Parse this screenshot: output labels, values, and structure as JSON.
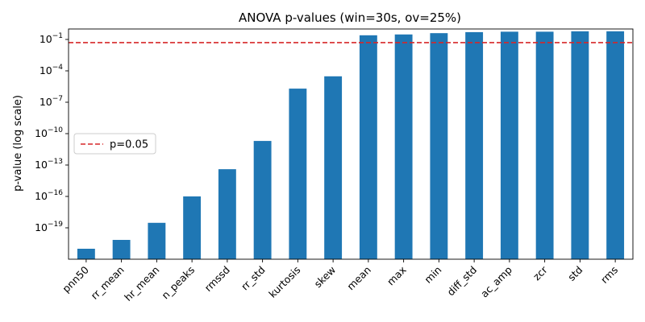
{
  "chart_data": {
    "type": "bar",
    "title": "ANOVA p-values (win=30s, ov=25%)",
    "xlabel": "",
    "ylabel": "p-value (log scale)",
    "yscale": "log",
    "ylim": [
      1e-22,
      1.0
    ],
    "ytick_exponents": [
      -19,
      -16,
      -13,
      -10,
      -7,
      -4,
      -1
    ],
    "categories": [
      "pnn50",
      "rr_mean",
      "hr_mean",
      "n_peaks",
      "rmssd",
      "rr_std",
      "kurtosis",
      "skew",
      "mean",
      "max",
      "min",
      "diff_std",
      "ac_amp",
      "zcr",
      "std",
      "rms"
    ],
    "values": [
      1e-21,
      7e-21,
      3e-19,
      1e-16,
      4e-14,
      2e-11,
      2e-06,
      3e-05,
      0.25,
      0.3,
      0.4,
      0.5,
      0.55,
      0.55,
      0.6,
      0.6
    ],
    "bar_color": "#1f77b4",
    "reference_line": {
      "y": 0.05,
      "label": "p=0.05",
      "color": "#d62728",
      "style": "dashed"
    },
    "legend": {
      "position": "center-left",
      "entries": [
        "p=0.05"
      ]
    },
    "grid": false
  }
}
